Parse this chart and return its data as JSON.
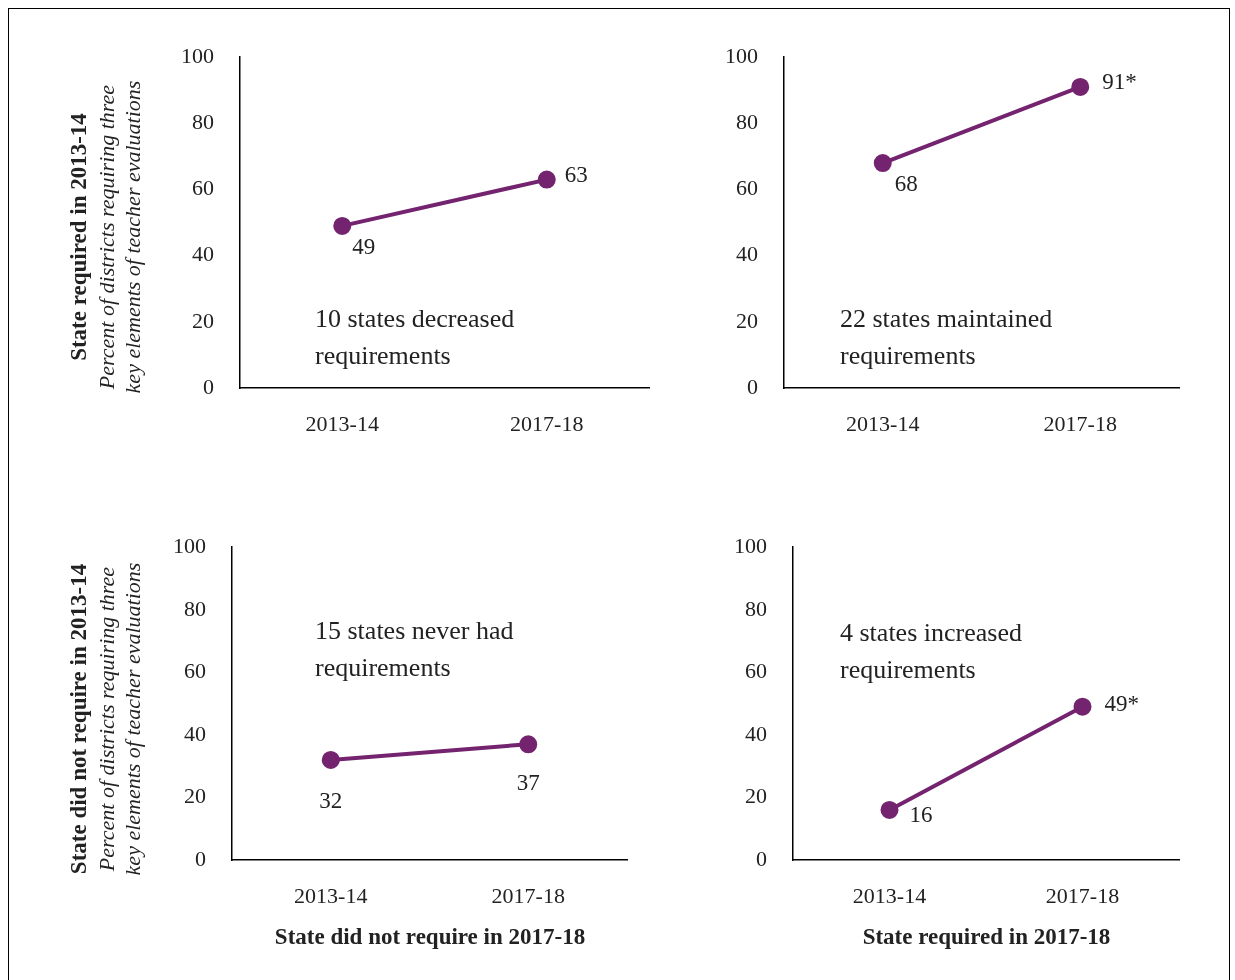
{
  "chart_data": [
    {
      "type": "line",
      "ylabel": "State required in 2013-14\nPercent of districts requiring three\nkey elements of teacher evaluations",
      "categories": [
        "2013-14",
        "2017-18"
      ],
      "series": [
        {
          "color": "#74236f",
          "values": [
            49,
            63
          ],
          "value_labels": [
            "49",
            "63"
          ]
        }
      ],
      "ylim": [
        0,
        100
      ],
      "yticks": [
        0,
        20,
        40,
        60,
        80,
        100
      ],
      "grid": false,
      "legend": false,
      "marker": "circle",
      "line_style": "solid",
      "annotations": [
        "10 states decreased requirements"
      ]
    },
    {
      "type": "line",
      "categories": [
        "2013-14",
        "2017-18"
      ],
      "series": [
        {
          "color": "#74236f",
          "values": [
            68,
            91
          ],
          "value_labels": [
            "68",
            "91*"
          ]
        }
      ],
      "ylim": [
        0,
        100
      ],
      "yticks": [
        0,
        20,
        40,
        60,
        80,
        100
      ],
      "grid": false,
      "legend": false,
      "marker": "circle",
      "line_style": "solid",
      "annotations": [
        "22 states maintained requirements"
      ]
    },
    {
      "type": "line",
      "ylabel": "State did not require in 2013-14\nPercent of districts requiring three\nkey elements of teacher evaluations",
      "xlabel": "State did not require in 2017-18",
      "categories": [
        "2013-14",
        "2017-18"
      ],
      "series": [
        {
          "color": "#74236f",
          "values": [
            32,
            37
          ],
          "value_labels": [
            "32",
            "37"
          ]
        }
      ],
      "ylim": [
        0,
        100
      ],
      "yticks": [
        0,
        20,
        40,
        60,
        80,
        100
      ],
      "grid": false,
      "legend": false,
      "marker": "circle",
      "line_style": "solid",
      "annotations": [
        "15 states never had requirements"
      ]
    },
    {
      "type": "line",
      "xlabel": "State required in 2017-18",
      "categories": [
        "2013-14",
        "2017-18"
      ],
      "series": [
        {
          "color": "#74236f",
          "values": [
            16,
            49
          ],
          "value_labels": [
            "16",
            "49*"
          ]
        }
      ],
      "ylim": [
        0,
        100
      ],
      "yticks": [
        0,
        20,
        40,
        60,
        80,
        100
      ],
      "grid": false,
      "legend": false,
      "marker": "circle",
      "line_style": "solid",
      "annotations": [
        "4 states increased requirements"
      ]
    }
  ]
}
